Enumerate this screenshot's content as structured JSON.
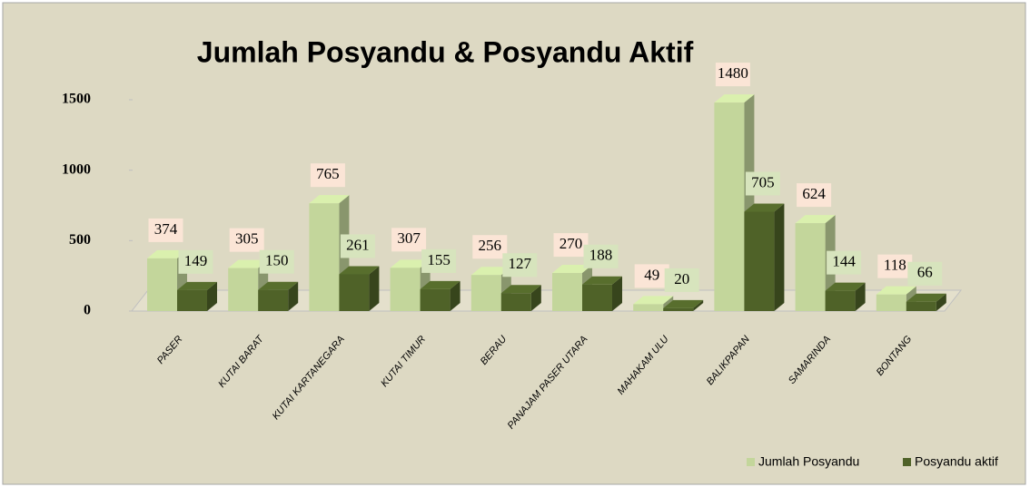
{
  "chart_data": {
    "type": "bar3d",
    "title": "Jumlah Posyandu & Posyandu  Aktif",
    "categories": [
      "PASER",
      "KUTAI BARAT",
      "KUTAI KARTANEGARA",
      "KUTAI TIMUR",
      "BERAU",
      "PANAJAM PASER UTARA",
      "MAHAKAM ULU",
      "BALIKPAPAN",
      "SAMARINDA",
      "BONTANG"
    ],
    "series": [
      {
        "name": "Jumlah Posyandu",
        "color": "#c3d69b",
        "values": [
          374,
          305,
          765,
          307,
          256,
          270,
          49,
          1480,
          624,
          118
        ]
      },
      {
        "name": "Posyandu aktif",
        "color": "#4f6228",
        "values": [
          149,
          150,
          261,
          155,
          127,
          188,
          20,
          705,
          144,
          66
        ]
      }
    ],
    "ylim": [
      0,
      1500
    ],
    "yticks": [
      0,
      500,
      1000,
      1500
    ],
    "legend": "bottom-right"
  }
}
